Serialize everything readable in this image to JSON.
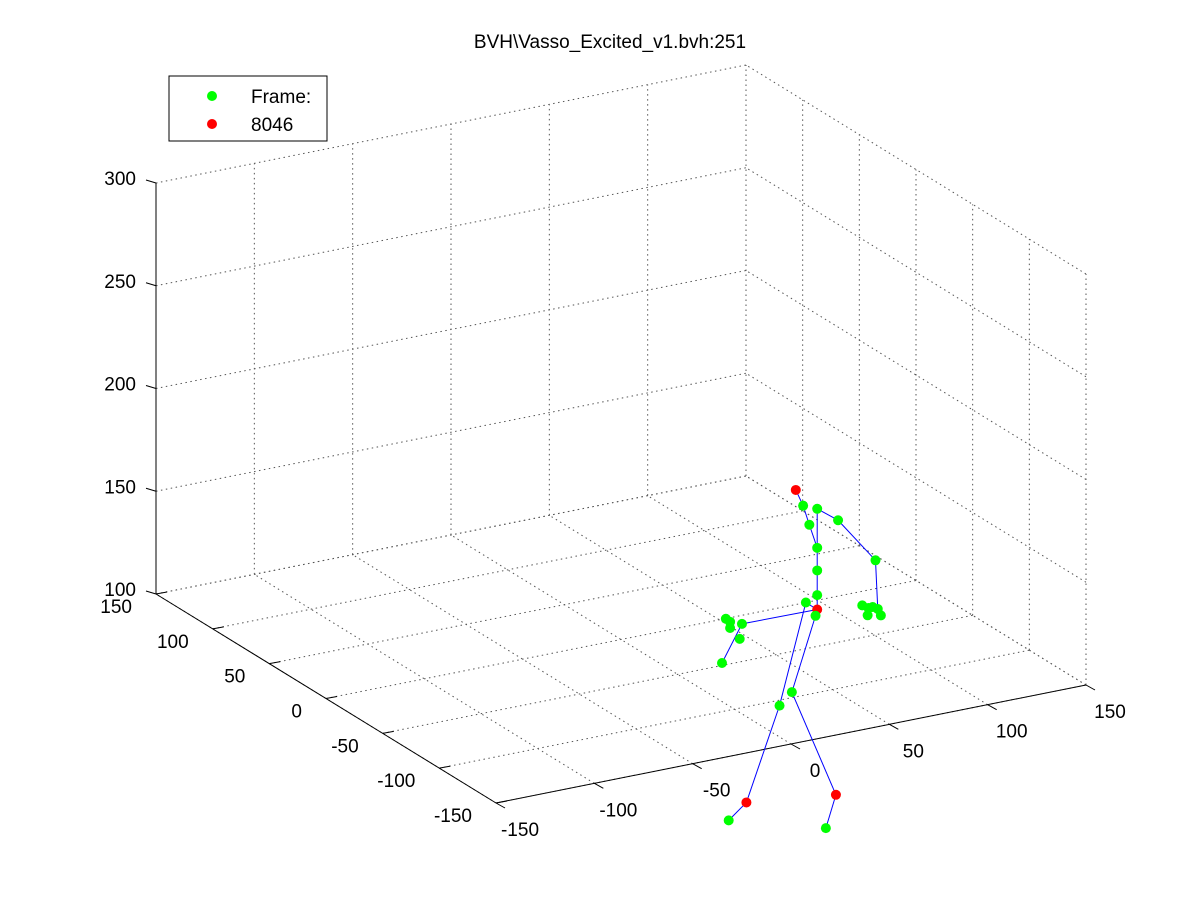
{
  "chart_data": {
    "type": "scatter",
    "title": "BVH\\Vasso_Excited_v1.bvh:251",
    "xlabel": "",
    "ylabel": "",
    "zlabel": "",
    "grid": true,
    "legend_position": "top-left",
    "xlim": [
      -150,
      150
    ],
    "ylim": [
      -150,
      150
    ],
    "zlim": [
      100,
      300
    ],
    "x_ticks": [
      "-150",
      "-100",
      "-50",
      "0",
      "50",
      "100",
      "150"
    ],
    "y_ticks": [
      "-150",
      "-100",
      "-50",
      "0",
      "50",
      "100",
      "150"
    ],
    "z_ticks": [
      "100",
      "150",
      "200",
      "250",
      "300"
    ],
    "colors": {
      "green": "#00ff00",
      "red": "#ff0000",
      "bone": "#0000ff"
    },
    "legend": [
      "Frame:",
      "8046"
    ],
    "joints": [
      {
        "name": "hips",
        "c": "red",
        "x": 94,
        "y": -10,
        "z": 100
      },
      {
        "name": "spine",
        "c": "green",
        "x": 94,
        "y": -10,
        "z": 107
      },
      {
        "name": "spine1",
        "c": "green",
        "x": 94,
        "y": -10,
        "z": 119
      },
      {
        "name": "spine2",
        "c": "green",
        "x": 94,
        "y": -10,
        "z": 130
      },
      {
        "name": "neck",
        "c": "green",
        "x": 90,
        "y": -10,
        "z": 142
      },
      {
        "name": "head",
        "c": "green",
        "x": 88,
        "y": -8,
        "z": 151
      },
      {
        "name": "headtop",
        "c": "red",
        "x": 86,
        "y": -5,
        "z": 158
      },
      {
        "name": "leftshoulder",
        "c": "green",
        "x": 94,
        "y": -10,
        "z": 149
      },
      {
        "name": "leftarm",
        "c": "green",
        "x": 100,
        "y": -18,
        "z": 145
      },
      {
        "name": "leftforearm",
        "c": "green",
        "x": 115,
        "y": -25,
        "z": 125
      },
      {
        "name": "lefthand",
        "c": "green",
        "x": 115,
        "y": -27,
        "z": 102
      },
      {
        "name": "lefthand1",
        "c": "green",
        "x": 113,
        "y": -26,
        "z": 103
      },
      {
        "name": "lefthand2",
        "c": "green",
        "x": 112,
        "y": -24,
        "z": 102
      },
      {
        "name": "lefthand3",
        "c": "green",
        "x": 110,
        "y": -22,
        "z": 103
      },
      {
        "name": "lefthand4",
        "c": "green",
        "x": 111,
        "y": -25,
        "z": 99
      },
      {
        "name": "lefthand5",
        "c": "green",
        "x": 116,
        "y": -28,
        "z": 99
      },
      {
        "name": "leftupleg",
        "c": "green",
        "x": 94,
        "y": 0,
        "z": 100
      },
      {
        "name": "leftleg",
        "c": "green",
        "x": 76,
        "y": -8,
        "z": 56
      },
      {
        "name": "leftfoot",
        "c": "red",
        "x": 58,
        "y": -10,
        "z": 13
      },
      {
        "name": "lefttoe",
        "c": "green",
        "x": 49,
        "y": -10,
        "z": 6
      },
      {
        "name": "rightupleg",
        "c": "green",
        "x": 92,
        "y": -12,
        "z": 98
      },
      {
        "name": "rightleg",
        "c": "green",
        "x": 84,
        "y": -5,
        "z": 60
      },
      {
        "name": "rightfoot",
        "c": "red",
        "x": 92,
        "y": -30,
        "z": 17
      },
      {
        "name": "righttoe",
        "c": "green",
        "x": 84,
        "y": -35,
        "z": 4
      },
      {
        "name": "pelvisleft1",
        "c": "green",
        "x": 69,
        "y": 13,
        "z": 90
      },
      {
        "name": "pelvisleft2",
        "c": "green",
        "x": 67,
        "y": 20,
        "z": 89
      },
      {
        "name": "pelvisleft3",
        "c": "green",
        "x": 66,
        "y": 22,
        "z": 90
      },
      {
        "name": "pelvisleft4",
        "c": "green",
        "x": 67,
        "y": 20,
        "z": 86
      },
      {
        "name": "pelvisleft5",
        "c": "green",
        "x": 69,
        "y": 15,
        "z": 82
      },
      {
        "name": "pelvisleft6",
        "c": "green",
        "x": 60,
        "y": 15,
        "z": 72
      }
    ],
    "bones": [
      [
        "hips",
        "spine"
      ],
      [
        "spine",
        "spine1"
      ],
      [
        "spine1",
        "spine2"
      ],
      [
        "spine2",
        "neck"
      ],
      [
        "neck",
        "head"
      ],
      [
        "head",
        "headtop"
      ],
      [
        "spine2",
        "leftshoulder"
      ],
      [
        "leftshoulder",
        "leftarm"
      ],
      [
        "leftarm",
        "leftforearm"
      ],
      [
        "leftforearm",
        "lefthand"
      ],
      [
        "lefthand",
        "lefthand1"
      ],
      [
        "hips",
        "leftupleg"
      ],
      [
        "leftupleg",
        "leftleg"
      ],
      [
        "leftleg",
        "leftfoot"
      ],
      [
        "leftfoot",
        "lefttoe"
      ],
      [
        "hips",
        "rightupleg"
      ],
      [
        "rightupleg",
        "rightleg"
      ],
      [
        "rightleg",
        "rightfoot"
      ],
      [
        "rightfoot",
        "righttoe"
      ],
      [
        "hips",
        "pelvisleft1"
      ],
      [
        "pelvisleft1",
        "pelvisleft6"
      ]
    ]
  }
}
